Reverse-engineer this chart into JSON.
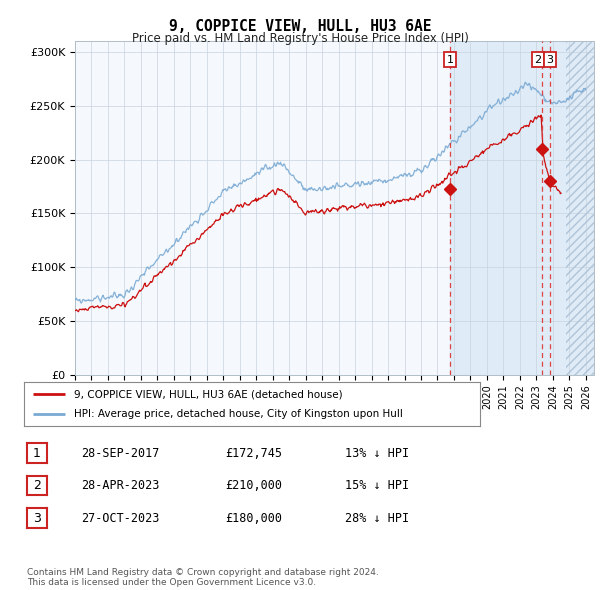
{
  "title": "9, COPPICE VIEW, HULL, HU3 6AE",
  "subtitle": "Price paid vs. HM Land Registry's House Price Index (HPI)",
  "ylabel_ticks": [
    "£0",
    "£50K",
    "£100K",
    "£150K",
    "£200K",
    "£250K",
    "£300K"
  ],
  "ytick_vals": [
    0,
    50000,
    100000,
    150000,
    200000,
    250000,
    300000
  ],
  "ylim": [
    0,
    310000
  ],
  "xlim_start": 1995,
  "xlim_end": 2026.5,
  "hpi_color": "#7aaad4",
  "prop_color": "#cc1111",
  "dashed_line_color": "#dd3333",
  "shade_color": "#dce9f5",
  "transactions": [
    {
      "label": "1",
      "year": 2017.75,
      "price": 172745
    },
    {
      "label": "2",
      "year": 2023.33,
      "price": 210000
    },
    {
      "label": "3",
      "year": 2023.83,
      "price": 180000
    }
  ],
  "legend_prop_label": "9, COPPICE VIEW, HULL, HU3 6AE (detached house)",
  "legend_hpi_label": "HPI: Average price, detached house, City of Kingston upon Hull",
  "table_rows": [
    {
      "num": "1",
      "date": "28-SEP-2017",
      "price": "£172,745",
      "pct": "13% ↓ HPI"
    },
    {
      "num": "2",
      "date": "28-APR-2023",
      "price": "£210,000",
      "pct": "15% ↓ HPI"
    },
    {
      "num": "3",
      "date": "27-OCT-2023",
      "price": "£180,000",
      "pct": "28% ↓ HPI"
    }
  ],
  "footer": "Contains HM Land Registry data © Crown copyright and database right 2024.\nThis data is licensed under the Open Government Licence v3.0."
}
